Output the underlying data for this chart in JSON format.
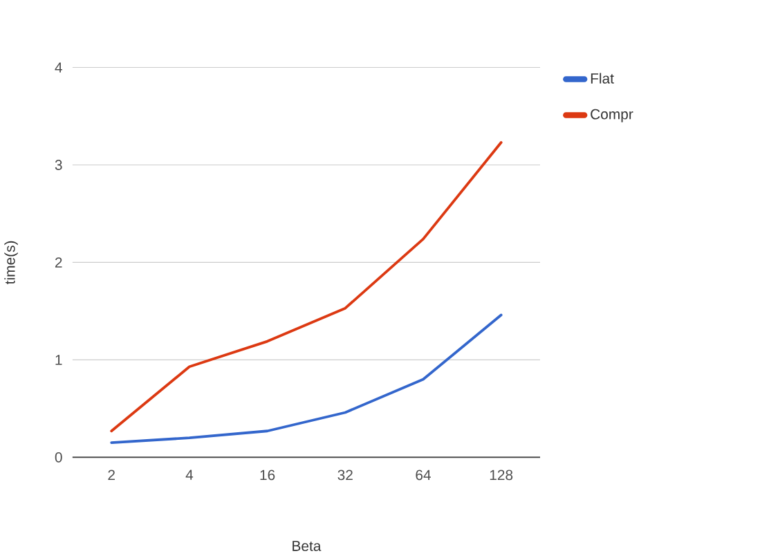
{
  "chart_data": {
    "type": "line",
    "xlabel": "Beta",
    "ylabel": "time(s)",
    "categories": [
      "2",
      "4",
      "16",
      "32",
      "64",
      "128"
    ],
    "series": [
      {
        "name": "Flat",
        "color": "#3366cc",
        "values": [
          0.15,
          0.2,
          0.27,
          0.46,
          0.8,
          1.46
        ]
      },
      {
        "name": "Compr",
        "color": "#dc3912",
        "values": [
          0.27,
          0.93,
          1.19,
          1.53,
          2.24,
          3.23
        ]
      }
    ],
    "ylim": [
      0,
      4
    ],
    "yticks": [
      0,
      1,
      2,
      3,
      4
    ],
    "grid": "y",
    "legend": "top right",
    "line_style": "solid",
    "marker": "none"
  }
}
